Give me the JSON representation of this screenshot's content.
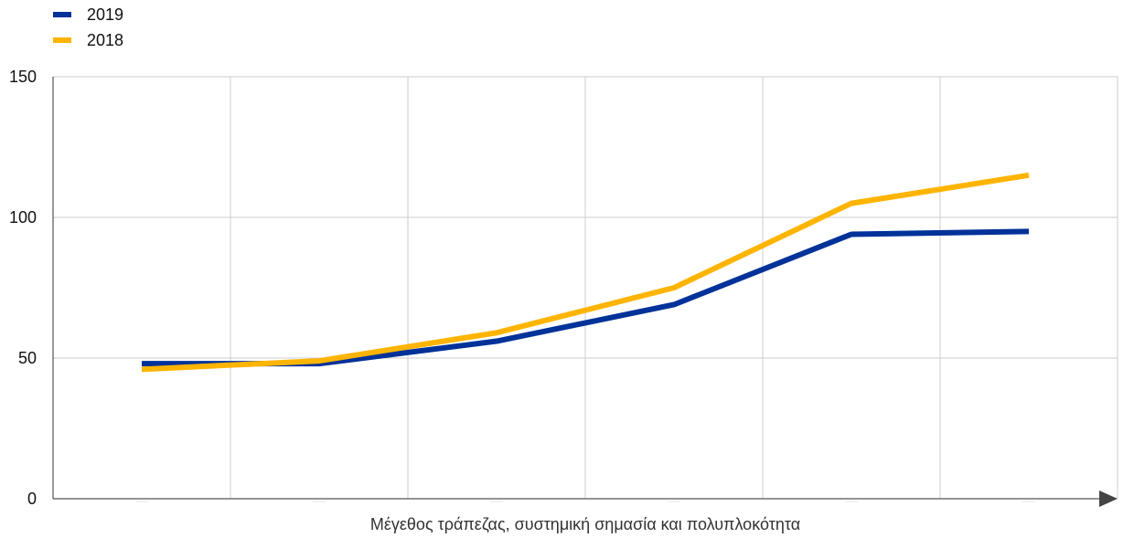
{
  "chart_data": {
    "type": "line",
    "title": "",
    "xlabel": "Μέγεθος τράπεζας, συστημική σημασία και πολυπλοκότητα",
    "ylabel": "",
    "ylim": [
      0,
      150
    ],
    "yticks": [
      0,
      50,
      100,
      150
    ],
    "x_points": 6,
    "grid": true,
    "legend_position": "top-left",
    "series": [
      {
        "name": "2019",
        "color": "#003299",
        "values": [
          48,
          48,
          56,
          69,
          94,
          95
        ]
      },
      {
        "name": "2018",
        "color": "#FFB400",
        "values": [
          46,
          49,
          59,
          75,
          105,
          115
        ]
      }
    ]
  }
}
